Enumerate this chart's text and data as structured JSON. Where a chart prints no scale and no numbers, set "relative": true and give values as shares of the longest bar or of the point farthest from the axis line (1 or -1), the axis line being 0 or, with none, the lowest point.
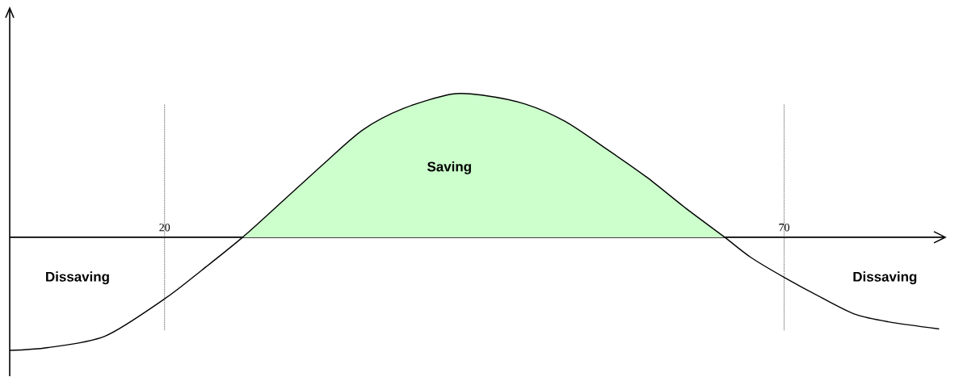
{
  "chart_data": {
    "type": "line",
    "relative": true,
    "xlim": [
      7.5,
      83
    ],
    "xticks": [
      20,
      70
    ],
    "tick_labels": "x",
    "series": [
      {
        "type": "area",
        "color": "#ccffcc",
        "x": [
          26.3,
          29.5,
          32.8,
          36,
          39.3,
          43.2,
          45.8,
          49.1,
          52.3,
          55.6,
          58.9,
          62.1,
          65.2
        ],
        "values": [
          0,
          0.25,
          0.51,
          0.75,
          0.9,
          1,
          0.99,
          0.93,
          0.81,
          0.62,
          0.42,
          0.2,
          0
        ]
      },
      {
        "color": "#000000",
        "x": [
          7.5,
          10.6,
          15.2,
          20,
          23,
          26.3,
          29.5,
          32.8,
          36,
          39.3,
          43.2,
          45.8,
          49.1,
          52.3,
          55.6,
          58.9,
          62.1,
          65.2,
          67.3,
          70,
          73.2,
          75.8,
          78.4,
          82.5
        ],
        "values": [
          -0.79,
          -0.77,
          -0.69,
          -0.43,
          -0.23,
          0,
          0.25,
          0.51,
          0.75,
          0.9,
          1,
          0.99,
          0.93,
          0.81,
          0.62,
          0.42,
          0.2,
          0,
          -0.14,
          -0.28,
          -0.43,
          -0.54,
          -0.59,
          -0.64
        ]
      }
    ],
    "ref_lines": [
      {
        "axis": "x",
        "value": 20,
        "line_style": "dotted"
      },
      {
        "axis": "x",
        "value": 70,
        "line_style": "dotted"
      }
    ],
    "annotations": [
      "Saving",
      "Dissaving",
      "Dissaving"
    ]
  }
}
